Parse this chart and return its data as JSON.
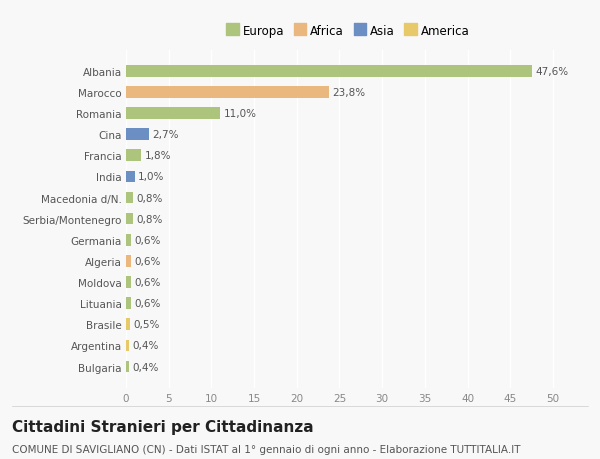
{
  "countries": [
    "Albania",
    "Marocco",
    "Romania",
    "Cina",
    "Francia",
    "India",
    "Macedonia d/N.",
    "Serbia/Montenegro",
    "Germania",
    "Algeria",
    "Moldova",
    "Lituania",
    "Brasile",
    "Argentina",
    "Bulgaria"
  ],
  "values": [
    47.6,
    23.8,
    11.0,
    2.7,
    1.8,
    1.0,
    0.8,
    0.8,
    0.6,
    0.6,
    0.6,
    0.6,
    0.5,
    0.4,
    0.4
  ],
  "labels": [
    "47,6%",
    "23,8%",
    "11,0%",
    "2,7%",
    "1,8%",
    "1,0%",
    "0,8%",
    "0,8%",
    "0,6%",
    "0,6%",
    "0,6%",
    "0,6%",
    "0,5%",
    "0,4%",
    "0,4%"
  ],
  "colors": [
    "#adc47d",
    "#eab87e",
    "#adc47d",
    "#6b8fc2",
    "#adc47d",
    "#6b8fc2",
    "#adc47d",
    "#adc47d",
    "#adc47d",
    "#eab87e",
    "#adc47d",
    "#adc47d",
    "#e8c96a",
    "#e8c96a",
    "#adc47d"
  ],
  "legend_labels": [
    "Europa",
    "Africa",
    "Asia",
    "America"
  ],
  "legend_colors": [
    "#adc47d",
    "#eab87e",
    "#6b8fc2",
    "#e8c96a"
  ],
  "title": "Cittadini Stranieri per Cittadinanza",
  "subtitle": "COMUNE DI SAVIGLIANO (CN) - Dati ISTAT al 1° gennaio di ogni anno - Elaborazione TUTTITALIA.IT",
  "xlim": [
    0,
    52
  ],
  "xticks": [
    0,
    5,
    10,
    15,
    20,
    25,
    30,
    35,
    40,
    45,
    50
  ],
  "bg_color": "#f8f8f8",
  "bar_height": 0.55,
  "grid_color": "#ffffff",
  "title_fontsize": 11,
  "subtitle_fontsize": 7.5,
  "label_fontsize": 7.5,
  "tick_fontsize": 7.5,
  "legend_fontsize": 8.5
}
